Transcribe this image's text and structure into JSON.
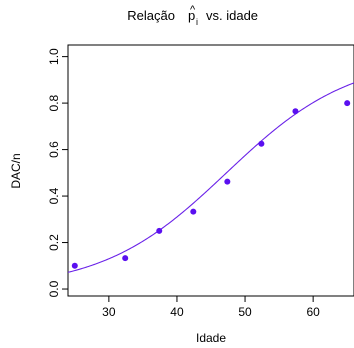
{
  "chart_data": {
    "type": "scatter",
    "title_text": "Relação",
    "title_symbol": "p",
    "title_symbol_hat": "^",
    "title_symbol_subscript": "i",
    "title_suffix": "vs. idade",
    "xlabel": "Idade",
    "ylabel": "DAC/n",
    "xlim": [
      24,
      66
    ],
    "ylim": [
      -0.03,
      1.05
    ],
    "x_ticks": [
      30,
      40,
      50,
      60
    ],
    "x_tick_labels": [
      "30",
      "40",
      "50",
      "60"
    ],
    "y_ticks": [
      0.0,
      0.2,
      0.4,
      0.6,
      0.8,
      1.0
    ],
    "y_tick_labels": [
      "0.0",
      "0.2",
      "0.4",
      "0.6",
      "0.8",
      "1.0"
    ],
    "grid": false,
    "point_color": "#5a0ff0",
    "curve_color": "#6a22e8",
    "points": {
      "x": [
        25,
        32.4,
        37.4,
        42.4,
        47.4,
        52.4,
        57.4,
        65
      ],
      "y": [
        0.1,
        0.133,
        0.25,
        0.333,
        0.462,
        0.625,
        0.765,
        0.8
      ]
    },
    "fitted_curve": {
      "model": "logistic",
      "intercept": -5.2,
      "slope": 0.11
    }
  }
}
